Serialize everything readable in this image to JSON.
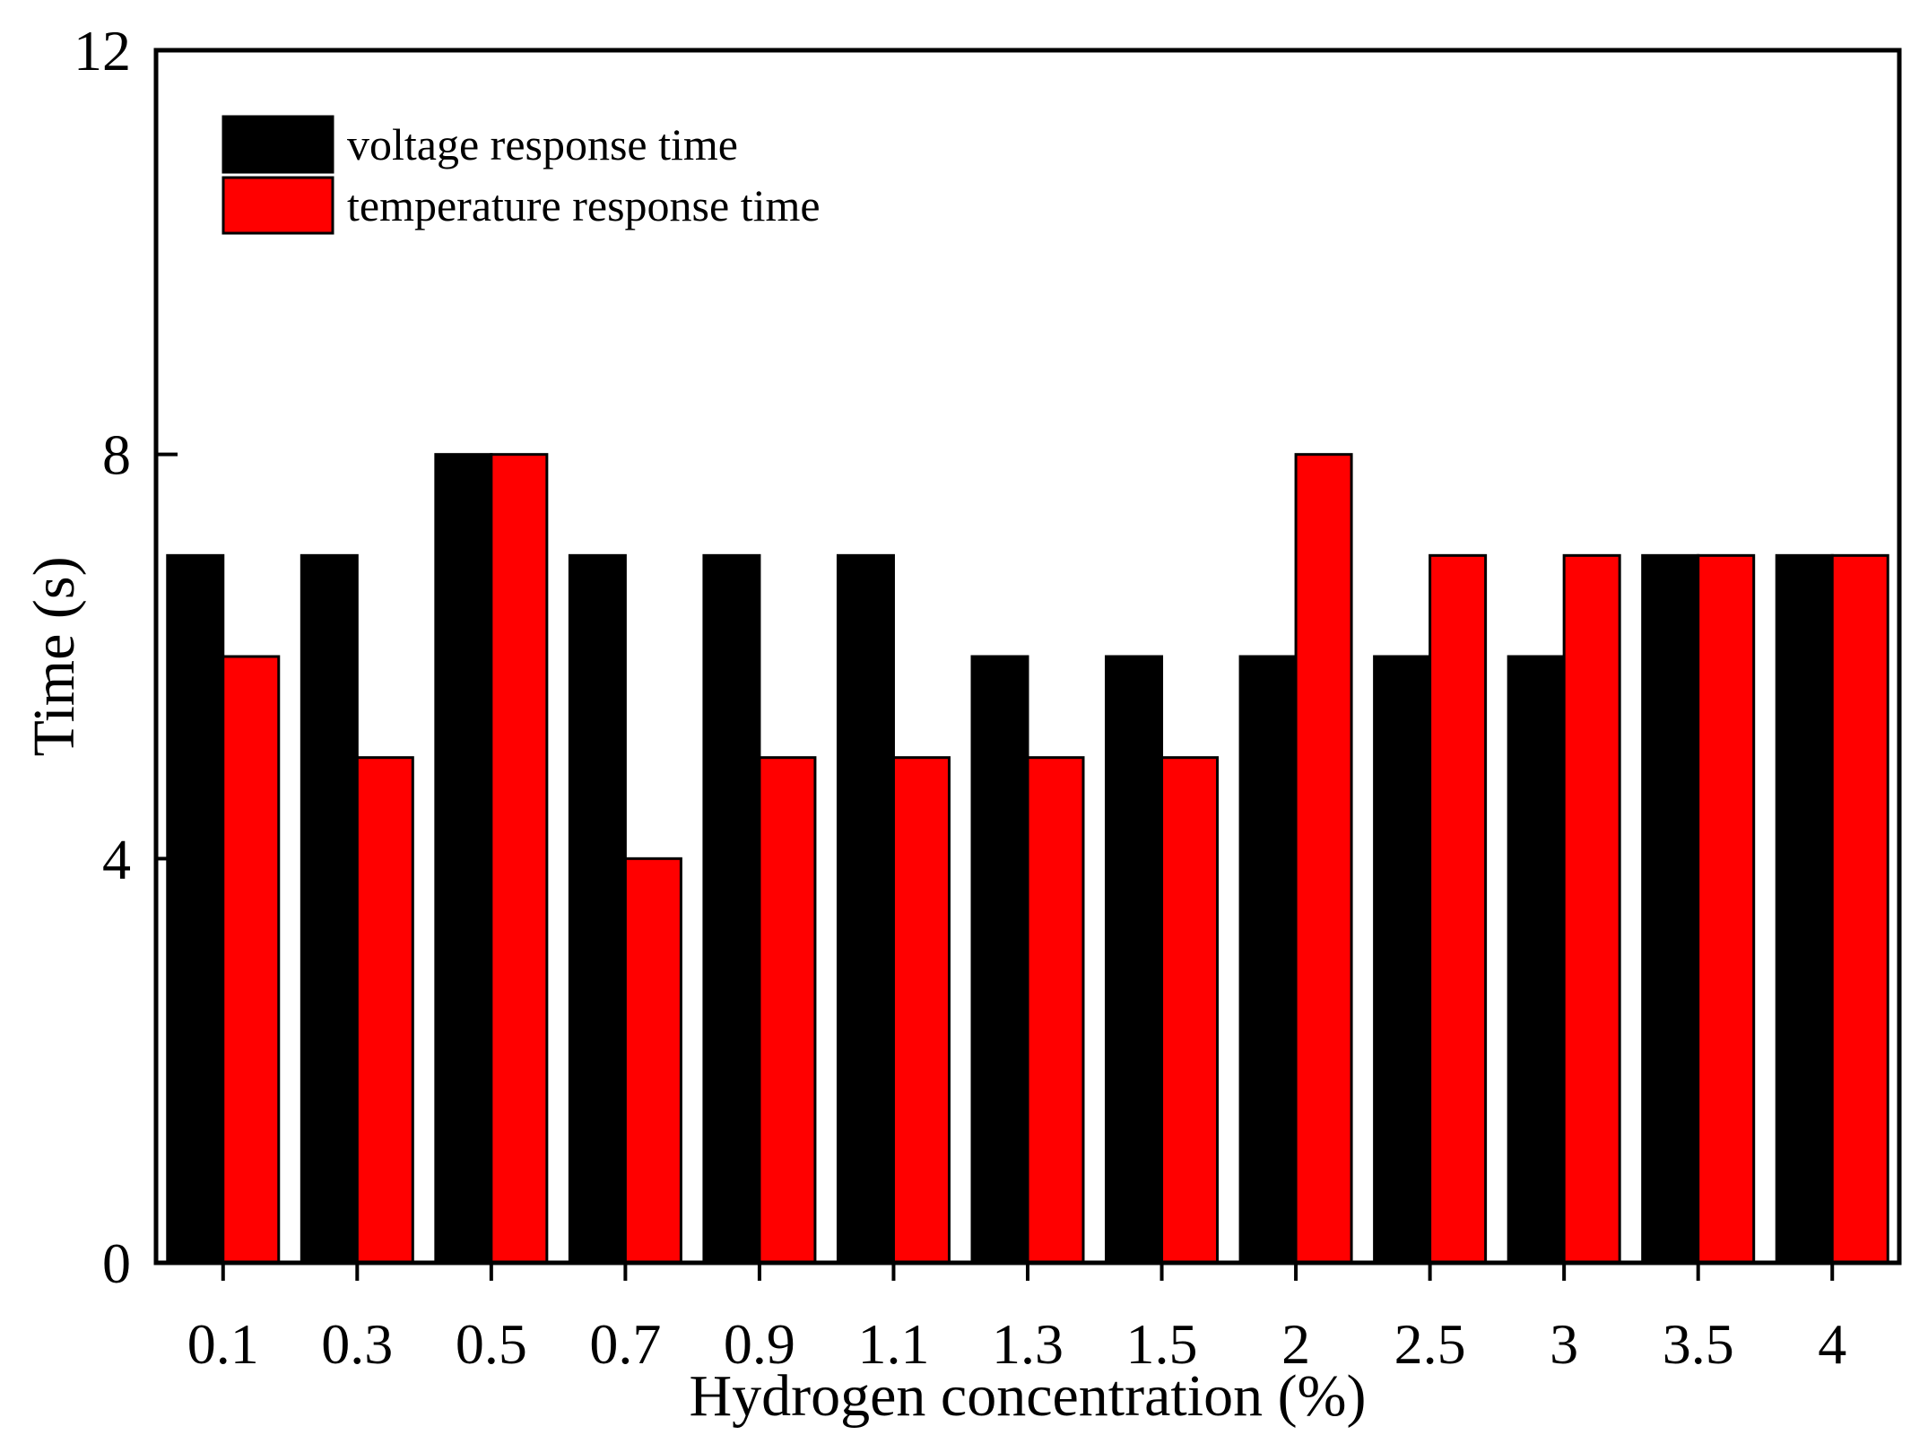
{
  "chart_data": {
    "type": "bar",
    "xlabel": "Hydrogen concentration (%)",
    "ylabel": "Time (s)",
    "categories": [
      "0.1",
      "0.3",
      "0.5",
      "0.7",
      "0.9",
      "1.1",
      "1.3",
      "1.5",
      "2",
      "2.5",
      "3",
      "3.5",
      "4"
    ],
    "series": [
      {
        "name": "voltage response time",
        "color": "#000000",
        "values": [
          7,
          7,
          8,
          7,
          7,
          7,
          6,
          6,
          6,
          6,
          6,
          7,
          7
        ]
      },
      {
        "name": "temperature response time",
        "color": "#ff0000",
        "values": [
          6,
          5,
          8,
          4,
          5,
          5,
          5,
          5,
          8,
          7,
          7,
          7,
          7
        ]
      }
    ],
    "ylim": [
      0,
      12
    ],
    "yticks": [
      0,
      4,
      8,
      12
    ],
    "grid": false,
    "legend_position": "top-left"
  }
}
